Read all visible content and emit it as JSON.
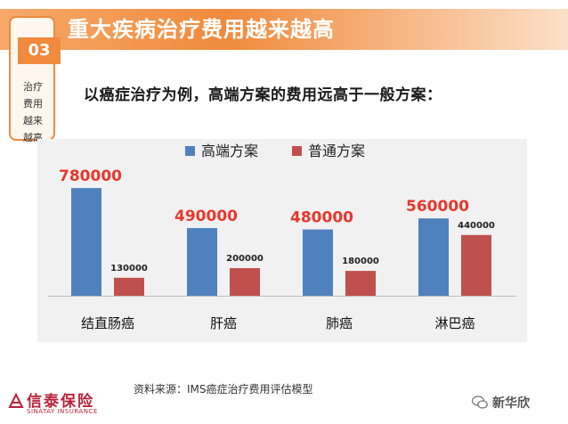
{
  "header": {
    "title": "重大疾病治疗费用越来越高"
  },
  "section": {
    "number": "03",
    "label_lines": [
      "治疗",
      "费用",
      "越来",
      "越高"
    ]
  },
  "subtitle": "以癌症治疗为例，高端方案的费用远高于一般方案：",
  "source": "资料来源：IMS癌症治疗费用评估模型",
  "logo": {
    "name": "信泰保险",
    "subtext": "SINATAY INSURANCE"
  },
  "watermark": {
    "text": "新华欣"
  },
  "colors": {
    "accent": "#f08a3c",
    "series_high": "#4f81bd",
    "series_normal": "#c0504d",
    "value_label_high": "#e8372c"
  },
  "chart_data": {
    "type": "bar",
    "categories": [
      "结直肠癌",
      "肝癌",
      "肺癌",
      "淋巴癌"
    ],
    "series": [
      {
        "name": "高端方案",
        "values": [
          780000,
          490000,
          480000,
          560000
        ]
      },
      {
        "name": "普通方案",
        "values": [
          130000,
          200000,
          180000,
          440000
        ]
      }
    ],
    "legend_position": "top",
    "ylim": [
      0,
      800000
    ],
    "grid": false
  }
}
